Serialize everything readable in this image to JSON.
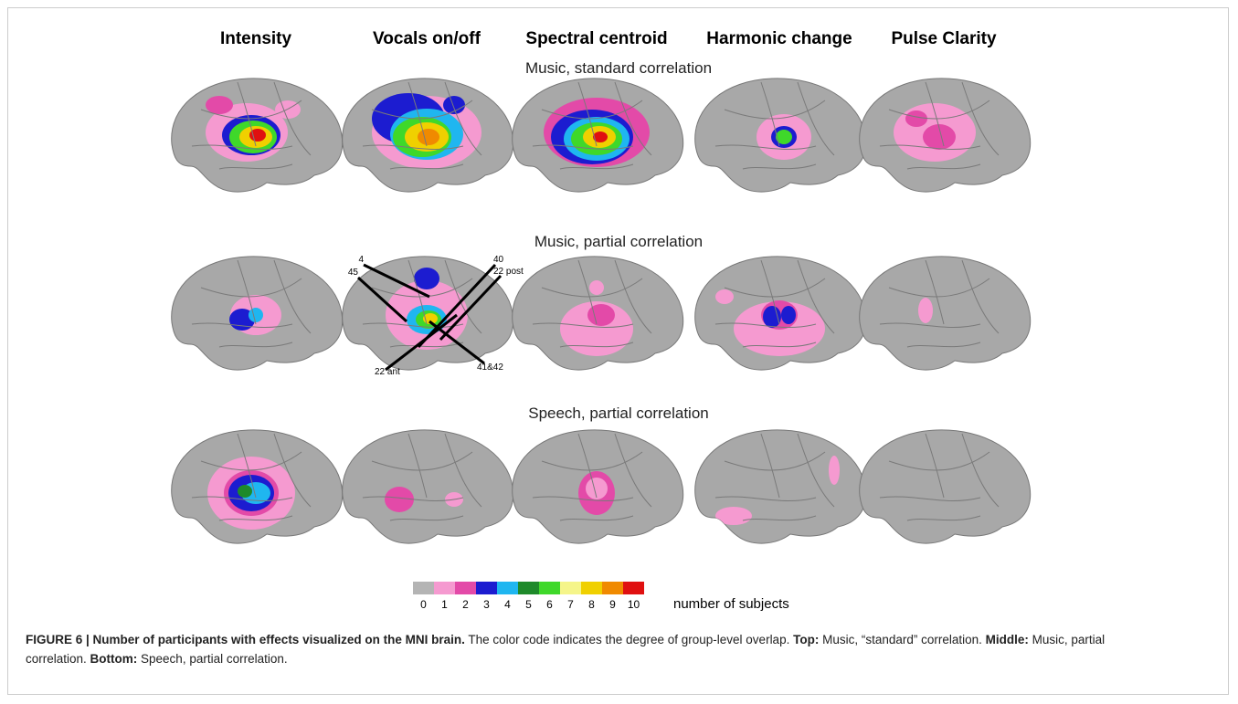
{
  "column_headers": [
    "Intensity",
    "Vocals on/off",
    "Spectral centroid",
    "Harmonic change",
    "Pulse Clarity"
  ],
  "rows": [
    {
      "title": "Music, standard correlation"
    },
    {
      "title": "Music, partial correlation"
    },
    {
      "title": "Speech, partial correlation"
    }
  ],
  "annotations": [
    "4",
    "45",
    "40",
    "22 post",
    "22 ant",
    "41&42"
  ],
  "colorbar": {
    "colors": [
      "#b4b4b4",
      "#f59ad0",
      "#e34aa8",
      "#1c1cd0",
      "#1fb6f0",
      "#1e8a2a",
      "#3fd82a",
      "#f5f58a",
      "#f0d000",
      "#f08a00",
      "#e01010"
    ],
    "ticks": [
      0,
      1,
      2,
      3,
      4,
      5,
      6,
      7,
      8,
      9,
      10
    ],
    "label": "number of subjects"
  },
  "caption": [
    {
      "text": "FIGURE 6 | Number of participants with effects visualized on the MNI brain.",
      "bold": true
    },
    {
      "text": " The color code indicates the degree of group-level overlap. ",
      "bold": false
    },
    {
      "text": "Top:",
      "bold": true
    },
    {
      "text": " Music, “standard” correlation. ",
      "bold": false
    },
    {
      "text": "Middle:",
      "bold": true
    },
    {
      "text": " Music, partial correlation. ",
      "bold": false
    },
    {
      "text": "Bottom:",
      "bold": true
    },
    {
      "text": " Speech, partial correlation.",
      "bold": false
    }
  ]
}
